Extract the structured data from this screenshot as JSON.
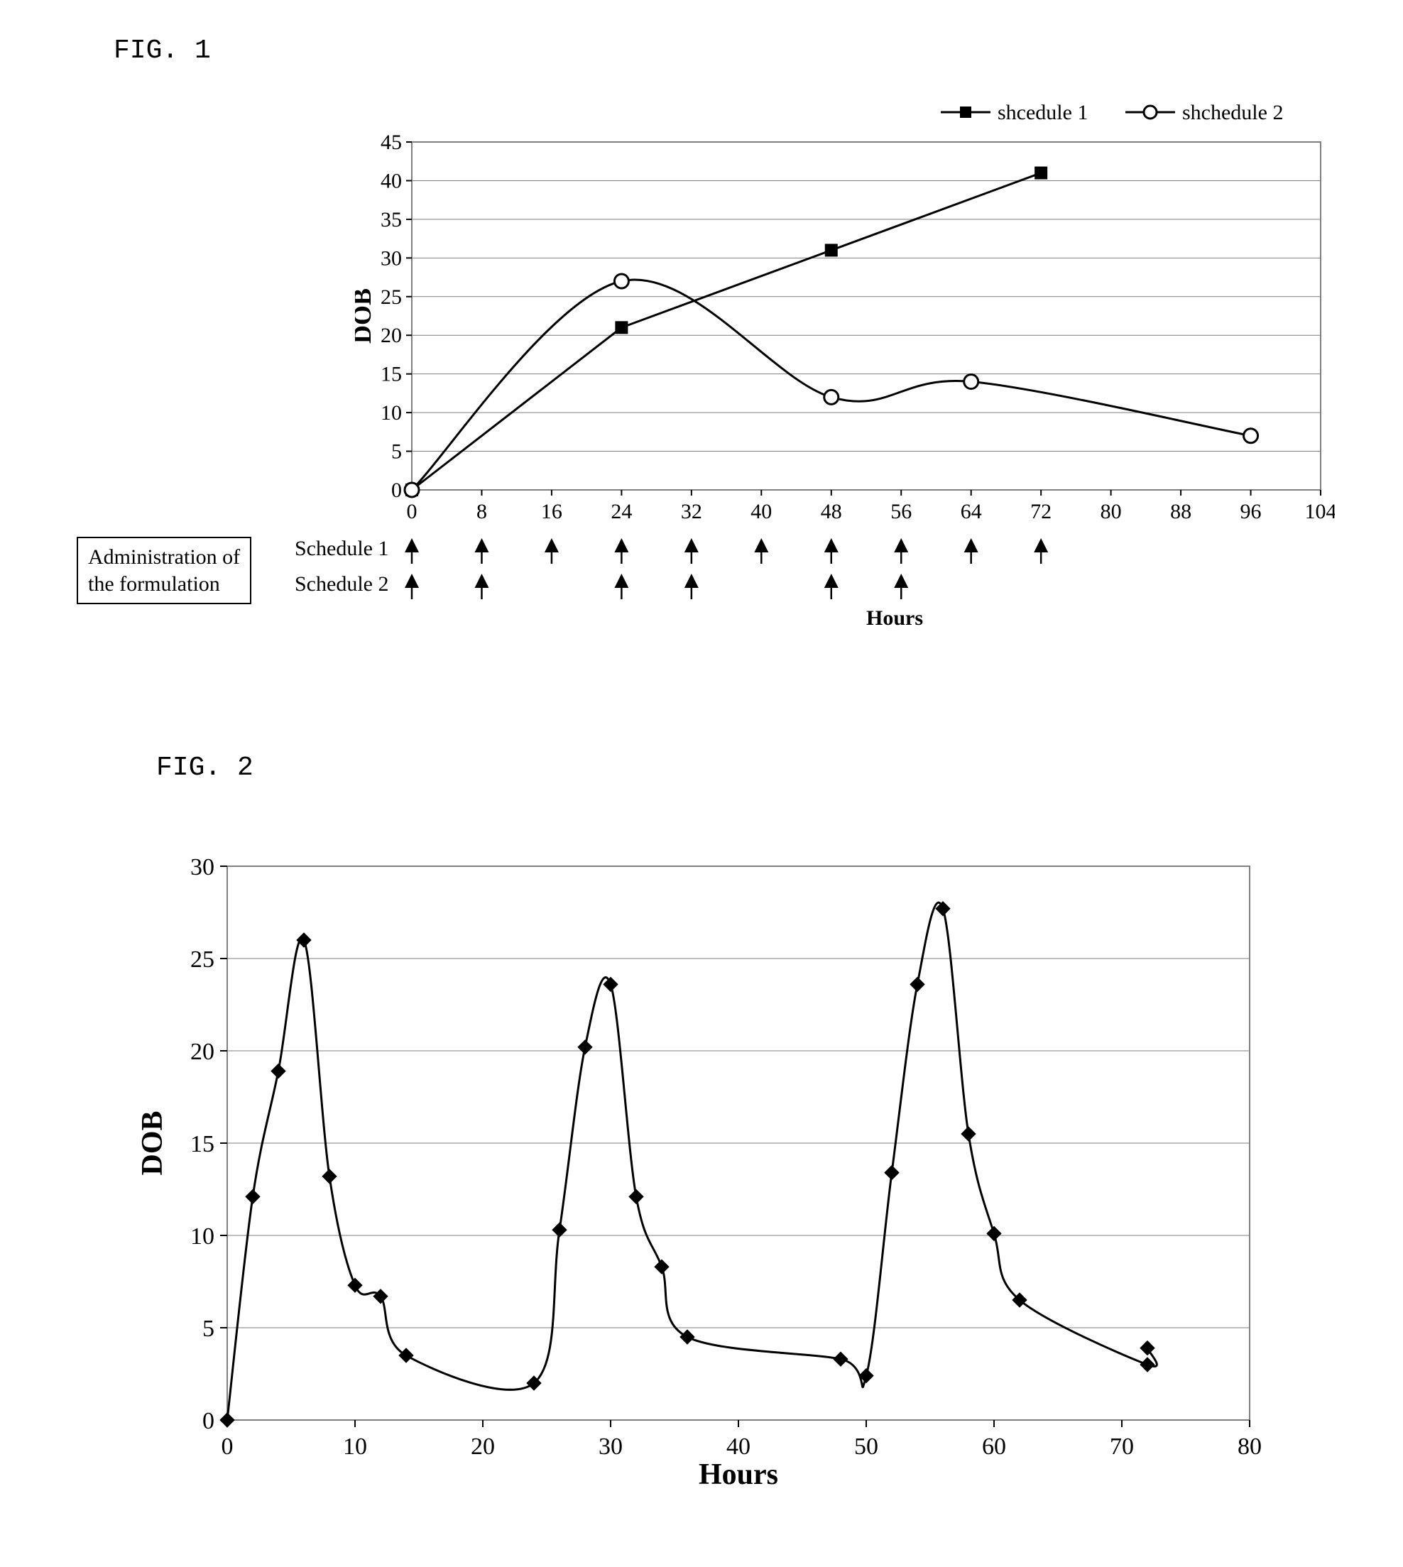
{
  "fig1": {
    "label": "FIG. 1",
    "chart": {
      "type": "line",
      "background_color": "#ffffff",
      "plot_border_color": "#7f7f7f",
      "gridline_color": "#7f7f7f",
      "axis_line_color": "#000000",
      "line_color": "#000000",
      "marker_stroke": "#000000",
      "tick_fontsize": 30,
      "label_fontsize": 36,
      "legend_fontsize": 30,
      "x_axis_title": "Hours",
      "y_axis_title": "DOB",
      "xlim": [
        0,
        104
      ],
      "ylim": [
        0,
        45
      ],
      "xtick_step": 8,
      "ytick_step": 5,
      "xticks": [
        0,
        8,
        16,
        24,
        32,
        40,
        48,
        56,
        64,
        72,
        80,
        88,
        96,
        104
      ],
      "yticks": [
        0,
        5,
        10,
        15,
        20,
        25,
        30,
        35,
        40,
        45
      ],
      "legend": {
        "items": [
          {
            "label": "shcedule 1",
            "marker": "filled-square"
          },
          {
            "label": "shchedule 2",
            "marker": "open-circle"
          }
        ]
      },
      "series": [
        {
          "name": "schedule1",
          "marker": "filled-square",
          "x": [
            0,
            24,
            48,
            72
          ],
          "y": [
            0,
            21,
            31,
            41
          ]
        },
        {
          "name": "schedule2",
          "marker": "open-circle",
          "x": [
            0,
            24,
            48,
            64,
            96
          ],
          "y": [
            0,
            27,
            12,
            14,
            7
          ],
          "curved": true
        }
      ]
    },
    "admin_box": {
      "line1": "Administration of",
      "line2": "the formulation"
    },
    "schedule_rows": [
      {
        "label": "Schedule 1",
        "arrows_at": [
          0,
          8,
          16,
          24,
          32,
          40,
          48,
          56,
          64,
          72
        ]
      },
      {
        "label": "Schedule 2",
        "arrows_at": [
          0,
          8,
          24,
          32,
          48,
          56
        ]
      }
    ],
    "x_title_below": "Hours"
  },
  "fig2": {
    "label": "FIG. 2",
    "chart": {
      "type": "line",
      "background_color": "#ffffff",
      "plot_border_color": "#7f7f7f",
      "gridline_color": "#7f7f7f",
      "axis_line_color": "#000000",
      "line_color": "#000000",
      "marker_stroke": "#000000",
      "marker_fill": "#000000",
      "marker": "filled-diamond",
      "tick_fontsize": 34,
      "label_fontsize": 42,
      "x_axis_title": "Hours",
      "y_axis_title": "DOB",
      "xlim": [
        0,
        80
      ],
      "ylim": [
        0,
        30
      ],
      "xtick_step": 10,
      "ytick_step": 5,
      "xticks": [
        0,
        10,
        20,
        30,
        40,
        50,
        60,
        70,
        80
      ],
      "yticks": [
        0,
        5,
        10,
        15,
        20,
        25,
        30
      ],
      "series": {
        "x": [
          0,
          2,
          4,
          6,
          8,
          10,
          12,
          14,
          24,
          26,
          28,
          30,
          32,
          34,
          36,
          48,
          50,
          52,
          54,
          56,
          58,
          60,
          62,
          72
        ],
        "y": [
          0,
          12.1,
          18.9,
          26.0,
          13.2,
          7.3,
          6.7,
          3.5,
          2.0,
          10.3,
          20.2,
          23.6,
          12.1,
          8.3,
          4.5,
          3.3,
          2.4,
          13.4,
          23.6,
          27.7,
          15.5,
          10.1,
          6.5,
          3.0
        ],
        "extra_point": {
          "x": 72,
          "y": 3.9
        }
      }
    }
  }
}
